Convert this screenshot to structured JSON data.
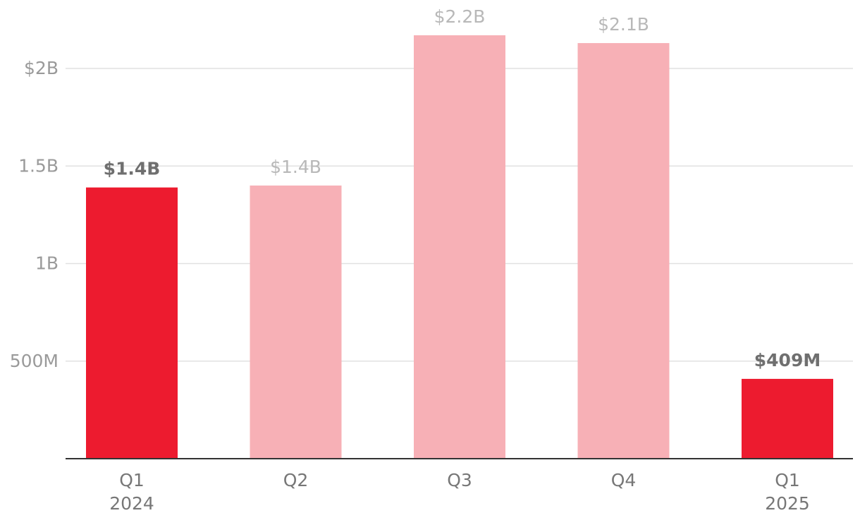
{
  "chart_data": {
    "type": "bar",
    "categories": [
      {
        "line1": "Q1",
        "line2": "2024"
      },
      {
        "line1": "Q2",
        "line2": ""
      },
      {
        "line1": "Q3",
        "line2": ""
      },
      {
        "line1": "Q4",
        "line2": ""
      },
      {
        "line1": "Q1",
        "line2": "2025"
      }
    ],
    "values": [
      1390000000,
      1400000000,
      2170000000,
      2130000000,
      409000000
    ],
    "data_labels": [
      "$1.4B",
      "$1.4B",
      "$2.2B",
      "$2.1B",
      "$409M"
    ],
    "highlighted": [
      true,
      false,
      false,
      false,
      true
    ],
    "y_ticks": [
      {
        "value": 500000000,
        "label": "500M"
      },
      {
        "value": 1000000000,
        "label": "1B"
      },
      {
        "value": 1500000000,
        "label": "1.5B"
      },
      {
        "value": 2000000000,
        "label": "$2B"
      }
    ],
    "ylim": [
      0,
      2300000000
    ],
    "grid": true,
    "colors": {
      "highlight": "#ed1b2f",
      "muted": "#f7b0b6",
      "grid": "#e1e1e1",
      "baseline": "#333333"
    }
  }
}
